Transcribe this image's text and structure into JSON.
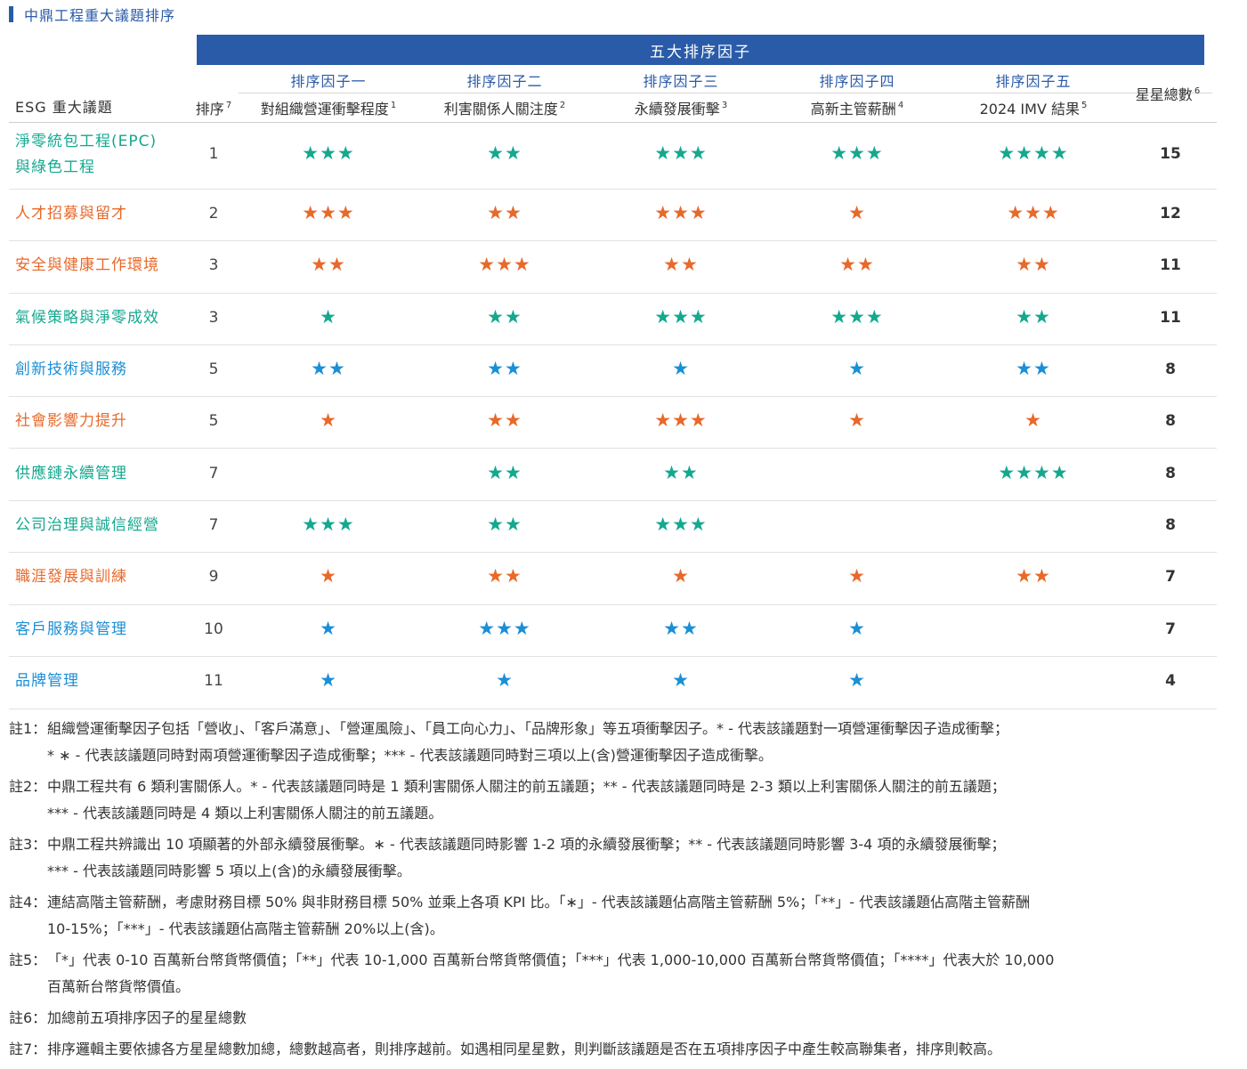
{
  "title": "中鼎工程重大議題排序",
  "band_label": "五大排序因子",
  "header": {
    "issue_col": "ESG 重大議題",
    "rank_col": "排序",
    "rank_sup": "7",
    "total_col": "星星總數",
    "total_sup": "6",
    "factors": [
      {
        "name": "排序因子一",
        "sub": "對組織營運衝擊程度",
        "sup": "1"
      },
      {
        "name": "排序因子二",
        "sub": "利害關係人關注度",
        "sup": "2"
      },
      {
        "name": "排序因子三",
        "sub": "永續發展衝擊",
        "sup": "3"
      },
      {
        "name": "排序因子四",
        "sub": "高新主管薪酬",
        "sup": "4"
      },
      {
        "name": "排序因子五",
        "sub": "2024 IMV 結果",
        "sup": "5"
      }
    ]
  },
  "colors": {
    "green": "#14a88f",
    "orange": "#e8692a",
    "blue": "#1a8fd6",
    "brand": "#2a5ba8"
  },
  "rows": [
    {
      "issue": "淨零統包工程(EPC)與綠色工程",
      "issue_l1": "淨零統包工程(EPC)",
      "issue_l2": "與綠色工程",
      "color": "green",
      "rank": "1",
      "stars": [
        "★★★",
        "★★",
        "★★★",
        "★★★",
        "★★★★"
      ],
      "total": "15"
    },
    {
      "issue": "人才招募與留才",
      "color": "orange",
      "rank": "2",
      "stars": [
        "★★★",
        "★★",
        "★★★",
        "★",
        "★★★"
      ],
      "total": "12"
    },
    {
      "issue": "安全與健康工作環境",
      "color": "orange",
      "rank": "3",
      "stars": [
        "★★",
        "★★★",
        "★★",
        "★★",
        "★★"
      ],
      "total": "11"
    },
    {
      "issue": "氣候策略與淨零成效",
      "color": "green",
      "rank": "3",
      "stars": [
        "★",
        "★★",
        "★★★",
        "★★★",
        "★★"
      ],
      "total": "11"
    },
    {
      "issue": "創新技術與服務",
      "color": "blue",
      "rank": "5",
      "stars": [
        "★★",
        "★★",
        "★",
        "★",
        "★★"
      ],
      "total": "8"
    },
    {
      "issue": "社會影響力提升",
      "color": "orange",
      "rank": "5",
      "stars": [
        "★",
        "★★",
        "★★★",
        "★",
        "★"
      ],
      "total": "8"
    },
    {
      "issue": "供應鏈永續管理",
      "color": "green",
      "rank": "7",
      "stars": [
        "",
        "★★",
        "★★",
        "",
        "★★★★"
      ],
      "total": "8"
    },
    {
      "issue": "公司治理與誠信經營",
      "color": "green",
      "rank": "7",
      "stars": [
        "★★★",
        "★★",
        "★★★",
        "",
        ""
      ],
      "total": "8"
    },
    {
      "issue": "職涯發展與訓練",
      "color": "orange",
      "rank": "9",
      "stars": [
        "★",
        "★★",
        "★",
        "★",
        "★★"
      ],
      "total": "7"
    },
    {
      "issue": "客戶服務與管理",
      "color": "blue",
      "rank": "10",
      "stars": [
        "★",
        "★★★",
        "★★",
        "★",
        ""
      ],
      "total": "7"
    },
    {
      "issue": "品牌管理",
      "color": "blue",
      "rank": "11",
      "stars": [
        "★",
        "★",
        "★",
        "★",
        ""
      ],
      "total": "4"
    }
  ],
  "notes": [
    {
      "key": "註1：",
      "lines": [
        "組織營運衝擊因子包括「營收」、「客戶滿意」、「營運風險」、「員工向心力」、「品牌形象」等五項衝擊因子。* - 代表該議題對一項營運衝擊因子造成衝擊；",
        "* ∗ - 代表該議題同時對兩項營運衝擊因子造成衝擊；*** - 代表該議題同時對三項以上(含)營運衝擊因子造成衝擊。"
      ]
    },
    {
      "key": "註2：",
      "lines": [
        "中鼎工程共有 6 類利害關係人。* - 代表該議題同時是 1 類利害關係人關注的前五議題；** - 代表該議題同時是 2-3 類以上利害關係人關注的前五議題；",
        "*** - 代表該議題同時是 4 類以上利害關係人關注的前五議題。"
      ]
    },
    {
      "key": "註3：",
      "lines": [
        "中鼎工程共辨識出 10 項顯著的外部永續發展衝擊。∗ - 代表該議題同時影響 1-2 項的永續發展衝擊；** - 代表該議題同時影響 3-4 項的永續發展衝擊；",
        "*** - 代表該議題同時影響 5 項以上(含)的永續發展衝擊。"
      ]
    },
    {
      "key": "註4：",
      "lines": [
        "連結高階主管薪酬，考慮財務目標 50% 與非財務目標 50% 並乘上各項 KPI 比。「∗」- 代表該議題佔高階主管薪酬 5%；「**」- 代表該議題佔高階主管薪酬",
        "10-15%；「***」- 代表該議題佔高階主管薪酬 20%以上(含)。"
      ]
    },
    {
      "key": "註5：",
      "lines": [
        "「*」代表 0-10 百萬新台幣貨幣價值；「**」代表 10-1,000 百萬新台幣貨幣價值；「***」代表 1,000-10,000 百萬新台幣貨幣價值；「****」代表大於 10,000",
        "百萬新台幣貨幣價值。"
      ]
    },
    {
      "key": "註6：",
      "lines": [
        "加總前五項排序因子的星星總數"
      ]
    },
    {
      "key": "註7：",
      "lines": [
        "排序邏輯主要依據各方星星總數加總，總數越高者，則排序越前。如遇相同星星數，則判斷該議題是否在五項排序因子中產生較高聯集者，排序則較高。"
      ]
    }
  ]
}
